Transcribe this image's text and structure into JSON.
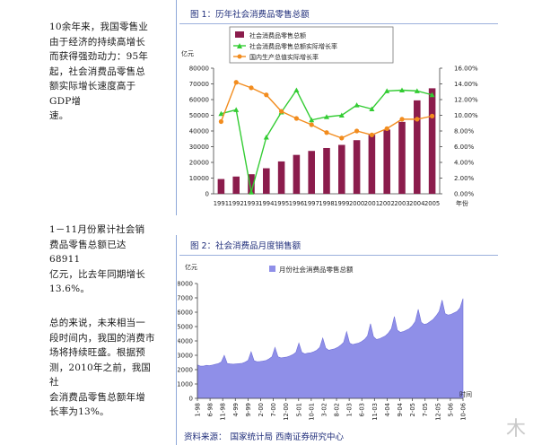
{
  "paragraphs": [
    "10余年来，我国零售业\n由于经济的持续高增长\n而获得强劲动力：95年\n起，社会消费品零售总\n额实际增长速度高于GDP增\n速。",
    "1－11月份累计社会销\n费品零售总额已达68911\n亿元，比去年同期增长\n13.6%。",
    "总的来说，未来相当一\n段时间内，我国的消费市\n场将持续旺盛。根据预\n测，2010年之前，我国社\n会消费品零售总额年增\n长率为13%。"
  ],
  "figure1": {
    "title": "图 1：历年社会消费品零售总额"
  },
  "figure2": {
    "title": "图 2：社会消费品月度销售额"
  },
  "source": {
    "label": "资料来源：",
    "value": "国家统计局 西南证券研究中心"
  },
  "watermark": "木",
  "chart_data": [
    {
      "type": "bar",
      "title": "",
      "ylabel_left": "亿元",
      "xlabel": "年份",
      "categories": [
        "1991",
        "1992",
        "1993",
        "1994",
        "1995",
        "1996",
        "1997",
        "1998",
        "1999",
        "2000",
        "2001",
        "2002",
        "2003",
        "2004",
        "2005"
      ],
      "left_axis": {
        "min": 0,
        "max": 80000,
        "ticks": [
          "0",
          "10000",
          "20000",
          "30000",
          "40000",
          "50000",
          "60000",
          "70000",
          "80000"
        ]
      },
      "right_axis": {
        "min": 0,
        "max": 16,
        "ticks": [
          "0.00%",
          "2.00%",
          "4.00%",
          "6.00%",
          "8.00%",
          "10.00%",
          "12.00%",
          "14.00%",
          "16.00%"
        ]
      },
      "legend": [
        "社会消费品零售总额",
        "社会消费品零售总额实际增长率",
        "国内生产总值实际增长率"
      ],
      "legend_position": "top",
      "series": [
        {
          "name": "社会消费品零售总额",
          "type": "bar",
          "axis": "left",
          "color": "#8b1c4c",
          "values": [
            9400,
            10990,
            12460,
            16260,
            20620,
            24770,
            27300,
            29150,
            31140,
            34150,
            37600,
            40900,
            45800,
            59500,
            67200
          ]
        },
        {
          "name": "社会消费品零售总额实际增长率",
          "type": "line",
          "axis": "right",
          "color": "#33cc33",
          "marker": "triangle",
          "values": [
            10.2,
            10.7,
            0.2,
            7.2,
            10.4,
            13.2,
            9.4,
            9.8,
            10.0,
            11.3,
            10.8,
            13.1,
            13.2,
            13.1,
            12.6
          ]
        },
        {
          "name": "国内生产总值实际增长率",
          "type": "line",
          "axis": "right",
          "color": "#f28c1e",
          "marker": "circle",
          "values": [
            9.2,
            14.2,
            13.5,
            12.6,
            10.5,
            9.6,
            8.8,
            7.8,
            7.1,
            8.0,
            7.5,
            8.3,
            9.5,
            9.5,
            9.9
          ]
        }
      ]
    },
    {
      "type": "area",
      "title": "",
      "ylabel": "亿元",
      "xlabel": "时间",
      "legend": [
        "月份社会消费品零售总额"
      ],
      "legend_position": "top",
      "ylim": [
        0,
        8000
      ],
      "yticks": [
        "0",
        "1000",
        "2000",
        "3000",
        "4000",
        "5000",
        "6000",
        "7000",
        "8000"
      ],
      "x_ticks": [
        "1-98",
        "6-98",
        "11-98",
        "4-99",
        "9-99",
        "2-00",
        "7-00",
        "12-00",
        "5-01",
        "10-01",
        "3-02",
        "8-02",
        "1-03",
        "6-03",
        "11-03",
        "4-04",
        "9-04",
        "2-05",
        "7-05",
        "12-05",
        "5-06",
        "10-06"
      ],
      "series": [
        {
          "name": "月份社会消费品零售总额",
          "color": "#8f8fe8",
          "values": [
            2330,
            2250,
            2250,
            2300,
            2280,
            2320,
            2370,
            2420,
            2530,
            3000,
            2430,
            2400,
            2380,
            2400,
            2420,
            2440,
            2520,
            2650,
            3250,
            2620,
            2550,
            2570,
            2600,
            2640,
            2750,
            2900,
            3550,
            2900,
            2820,
            2850,
            2880,
            2950,
            3050,
            3200,
            3850,
            3200,
            3100,
            3150,
            3180,
            3250,
            3350,
            3550,
            4200,
            3500,
            3350,
            3400,
            3450,
            3550,
            3700,
            3900,
            4650,
            3850,
            3750,
            3800,
            3850,
            3950,
            4100,
            4350,
            5200,
            4300,
            4100,
            4150,
            4250,
            4350,
            4550,
            4850,
            5700,
            4750,
            4600,
            4650,
            4750,
            4850,
            5050,
            5350,
            6200,
            5300,
            5150,
            5200,
            5350,
            5500,
            5750,
            6050,
            6850,
            5900,
            5800,
            5850,
            5950,
            6050,
            6300,
            6950
          ]
        }
      ]
    }
  ]
}
